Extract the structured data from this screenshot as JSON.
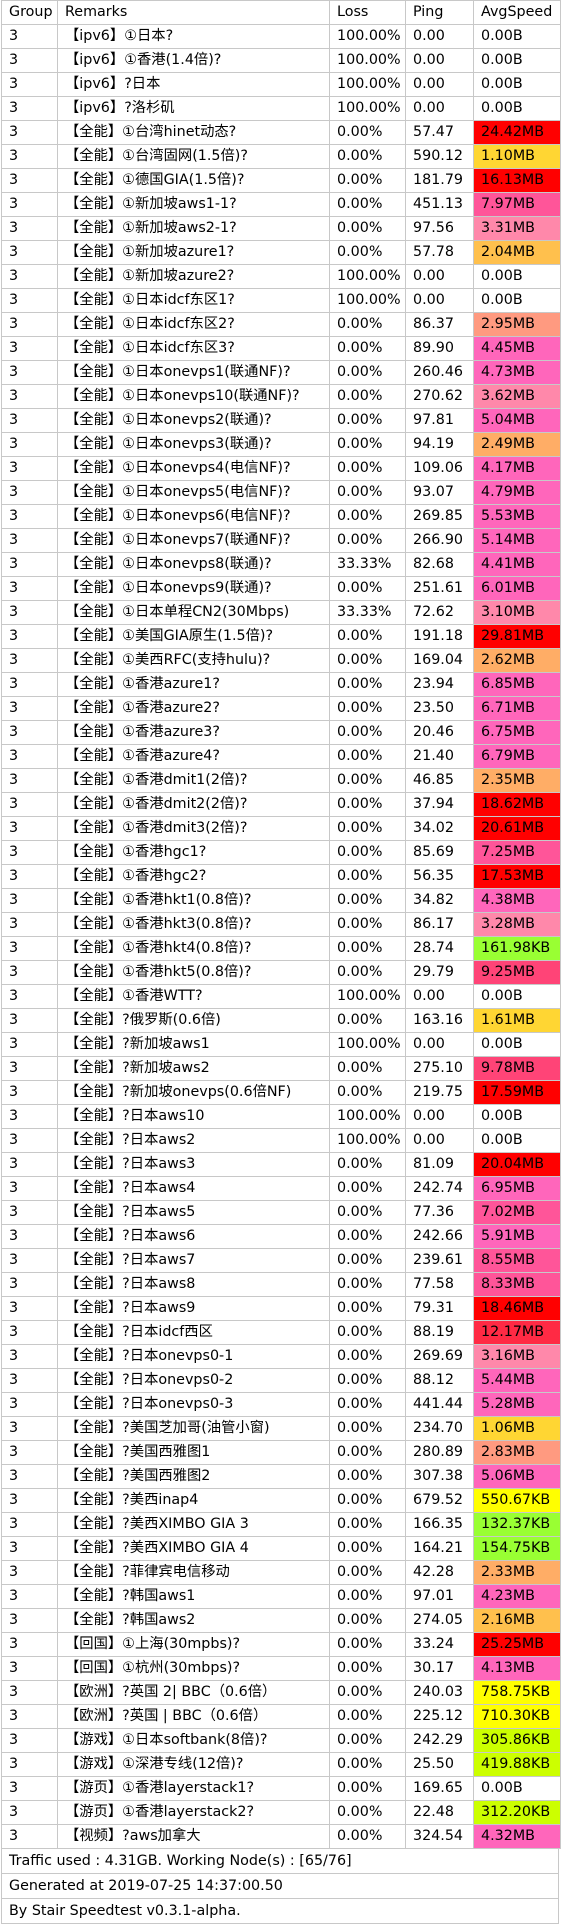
{
  "table": {
    "headers": [
      "Group",
      "Remarks",
      "Loss",
      "Ping",
      "AvgSpeed"
    ],
    "rows": [
      [
        "3",
        "【ipv6】①日本?",
        "100.00%",
        "0.00",
        "0.00B",
        "#ffffff"
      ],
      [
        "3",
        "【ipv6】①香港(1.4倍)?",
        "100.00%",
        "0.00",
        "0.00B",
        "#ffffff"
      ],
      [
        "3",
        "【ipv6】?日本",
        "100.00%",
        "0.00",
        "0.00B",
        "#ffffff"
      ],
      [
        "3",
        "【ipv6】?洛杉矶",
        "100.00%",
        "0.00",
        "0.00B",
        "#ffffff"
      ],
      [
        "3",
        "【全能】①台湾hinet动态?",
        "0.00%",
        "57.47",
        "24.42MB",
        "#ff0000"
      ],
      [
        "3",
        "【全能】①台湾固网(1.5倍)?",
        "0.00%",
        "590.12",
        "1.10MB",
        "#ffd633"
      ],
      [
        "3",
        "【全能】①德国GIA(1.5倍)?",
        "0.00%",
        "181.79",
        "16.13MB",
        "#ff0000"
      ],
      [
        "3",
        "【全能】①新加坡aws1-1?",
        "0.00%",
        "451.13",
        "7.97MB",
        "#ff5599"
      ],
      [
        "3",
        "【全能】①新加坡aws2-1?",
        "0.00%",
        "97.56",
        "3.31MB",
        "#ff88aa"
      ],
      [
        "3",
        "【全能】①新加坡azure1?",
        "0.00%",
        "57.78",
        "2.04MB",
        "#ffc04d"
      ],
      [
        "3",
        "【全能】①新加坡azure2?",
        "100.00%",
        "0.00",
        "0.00B",
        "#ffffff"
      ],
      [
        "3",
        "【全能】①日本idcf东区1?",
        "100.00%",
        "0.00",
        "0.00B",
        "#ffffff"
      ],
      [
        "3",
        "【全能】①日本idcf东区2?",
        "0.00%",
        "86.37",
        "2.95MB",
        "#ff9a80"
      ],
      [
        "3",
        "【全能】①日本idcf东区3?",
        "0.00%",
        "89.90",
        "4.45MB",
        "#ff66bb"
      ],
      [
        "3",
        "【全能】①日本onevps1(联通NF)?",
        "0.00%",
        "260.46",
        "4.73MB",
        "#ff66bb"
      ],
      [
        "3",
        "【全能】①日本onevps10(联通NF)?",
        "0.00%",
        "270.62",
        "3.62MB",
        "#ff88aa"
      ],
      [
        "3",
        "【全能】①日本onevps2(联通)?",
        "0.00%",
        "97.81",
        "5.04MB",
        "#ff66bb"
      ],
      [
        "3",
        "【全能】①日本onevps3(联通)?",
        "0.00%",
        "94.19",
        "2.49MB",
        "#ffad66"
      ],
      [
        "3",
        "【全能】①日本onevps4(电信NF)?",
        "0.00%",
        "109.06",
        "4.17MB",
        "#ff66bb"
      ],
      [
        "3",
        "【全能】①日本onevps5(电信NF)?",
        "0.00%",
        "93.07",
        "4.79MB",
        "#ff66bb"
      ],
      [
        "3",
        "【全能】①日本onevps6(电信NF)?",
        "0.00%",
        "269.85",
        "5.53MB",
        "#ff66bb"
      ],
      [
        "3",
        "【全能】①日本onevps7(联通NF)?",
        "0.00%",
        "266.90",
        "5.14MB",
        "#ff66bb"
      ],
      [
        "3",
        "【全能】①日本onevps8(联通)?",
        "33.33%",
        "82.68",
        "4.41MB",
        "#ff66bb"
      ],
      [
        "3",
        "【全能】①日本onevps9(联通)?",
        "0.00%",
        "251.61",
        "6.01MB",
        "#ff66bb"
      ],
      [
        "3",
        "【全能】①日本单程CN2(30Mbps)",
        "33.33%",
        "72.62",
        "3.10MB",
        "#ff88aa"
      ],
      [
        "3",
        "【全能】①美国GIA原生(1.5倍)?",
        "0.00%",
        "191.18",
        "29.81MB",
        "#ff0000"
      ],
      [
        "3",
        "【全能】①美西RFC(支持hulu)?",
        "0.00%",
        "169.04",
        "2.62MB",
        "#ffad66"
      ],
      [
        "3",
        "【全能】①香港azure1?",
        "0.00%",
        "23.94",
        "6.85MB",
        "#ff66bb"
      ],
      [
        "3",
        "【全能】①香港azure2?",
        "0.00%",
        "23.50",
        "6.71MB",
        "#ff66bb"
      ],
      [
        "3",
        "【全能】①香港azure3?",
        "0.00%",
        "20.46",
        "6.75MB",
        "#ff66bb"
      ],
      [
        "3",
        "【全能】①香港azure4?",
        "0.00%",
        "21.40",
        "6.79MB",
        "#ff66bb"
      ],
      [
        "3",
        "【全能】①香港dmit1(2倍)?",
        "0.00%",
        "46.85",
        "2.35MB",
        "#ffad66"
      ],
      [
        "3",
        "【全能】①香港dmit2(2倍)?",
        "0.00%",
        "37.94",
        "18.62MB",
        "#ff0000"
      ],
      [
        "3",
        "【全能】①香港dmit3(2倍)?",
        "0.00%",
        "34.02",
        "20.61MB",
        "#ff0000"
      ],
      [
        "3",
        "【全能】①香港hgc1?",
        "0.00%",
        "85.69",
        "7.25MB",
        "#ff5599"
      ],
      [
        "3",
        "【全能】①香港hgc2?",
        "0.00%",
        "56.35",
        "17.53MB",
        "#ff0000"
      ],
      [
        "3",
        "【全能】①香港hkt1(0.8倍)?",
        "0.00%",
        "34.82",
        "4.38MB",
        "#ff66bb"
      ],
      [
        "3",
        "【全能】①香港hkt3(0.8倍)?",
        "0.00%",
        "86.17",
        "3.28MB",
        "#ff88aa"
      ],
      [
        "3",
        "【全能】①香港hkt4(0.8倍)?",
        "0.00%",
        "28.74",
        "161.98KB",
        "#99ff33"
      ],
      [
        "3",
        "【全能】①香港hkt5(0.8倍)?",
        "0.00%",
        "29.79",
        "9.25MB",
        "#ff4477"
      ],
      [
        "3",
        "【全能】①香港WTT?",
        "100.00%",
        "0.00",
        "0.00B",
        "#ffffff"
      ],
      [
        "3",
        "【全能】?俄罗斯(0.6倍)",
        "0.00%",
        "163.16",
        "1.61MB",
        "#ffd633"
      ],
      [
        "3",
        "【全能】?新加坡aws1",
        "100.00%",
        "0.00",
        "0.00B",
        "#ffffff"
      ],
      [
        "3",
        "【全能】?新加坡aws2",
        "0.00%",
        "275.10",
        "9.78MB",
        "#ff4477"
      ],
      [
        "3",
        "【全能】?新加坡onevps(0.6倍NF)",
        "0.00%",
        "219.75",
        "17.59MB",
        "#ff0000"
      ],
      [
        "3",
        "【全能】?日本aws10",
        "100.00%",
        "0.00",
        "0.00B",
        "#ffffff"
      ],
      [
        "3",
        "【全能】?日本aws2",
        "100.00%",
        "0.00",
        "0.00B",
        "#ffffff"
      ],
      [
        "3",
        "【全能】?日本aws3",
        "0.00%",
        "81.09",
        "20.04MB",
        "#ff0000"
      ],
      [
        "3",
        "【全能】?日本aws4",
        "0.00%",
        "242.74",
        "6.95MB",
        "#ff66bb"
      ],
      [
        "3",
        "【全能】?日本aws5",
        "0.00%",
        "77.36",
        "7.02MB",
        "#ff5599"
      ],
      [
        "3",
        "【全能】?日本aws6",
        "0.00%",
        "242.66",
        "5.91MB",
        "#ff66bb"
      ],
      [
        "3",
        "【全能】?日本aws7",
        "0.00%",
        "239.61",
        "8.55MB",
        "#ff5599"
      ],
      [
        "3",
        "【全能】?日本aws8",
        "0.00%",
        "77.58",
        "8.33MB",
        "#ff5599"
      ],
      [
        "3",
        "【全能】?日本aws9",
        "0.00%",
        "79.31",
        "18.46MB",
        "#ff0000"
      ],
      [
        "3",
        "【全能】?日本idcf西区",
        "0.00%",
        "88.19",
        "12.17MB",
        "#ff2a44"
      ],
      [
        "3",
        "【全能】?日本onevps0-1",
        "0.00%",
        "269.69",
        "3.16MB",
        "#ff88aa"
      ],
      [
        "3",
        "【全能】?日本onevps0-2",
        "0.00%",
        "88.12",
        "5.44MB",
        "#ff66bb"
      ],
      [
        "3",
        "【全能】?日本onevps0-3",
        "0.00%",
        "441.44",
        "5.28MB",
        "#ff66bb"
      ],
      [
        "3",
        "【全能】?美国芝加哥(油管小窗)",
        "0.00%",
        "234.70",
        "1.06MB",
        "#ffd633"
      ],
      [
        "3",
        "【全能】?美国西雅图1",
        "0.00%",
        "280.89",
        "2.83MB",
        "#ff9a80"
      ],
      [
        "3",
        "【全能】?美国西雅图2",
        "0.00%",
        "307.38",
        "5.06MB",
        "#ff66bb"
      ],
      [
        "3",
        "【全能】?美西inap4",
        "0.00%",
        "679.52",
        "550.67KB",
        "#ffff00"
      ],
      [
        "3",
        "【全能】?美西XIMBO GIA 3",
        "0.00%",
        "166.35",
        "132.37KB",
        "#99ff33"
      ],
      [
        "3",
        "【全能】?美西XIMBO GIA 4",
        "0.00%",
        "164.21",
        "154.75KB",
        "#99ff33"
      ],
      [
        "3",
        "【全能】?菲律宾电信移动",
        "0.00%",
        "42.28",
        "2.33MB",
        "#ffad66"
      ],
      [
        "3",
        "【全能】?韩国aws1",
        "0.00%",
        "97.01",
        "4.23MB",
        "#ff66bb"
      ],
      [
        "3",
        "【全能】?韩国aws2",
        "0.00%",
        "274.05",
        "2.16MB",
        "#ffc04d"
      ],
      [
        "3",
        "【回国】①上海(30mpbs)?",
        "0.00%",
        "33.24",
        "25.25MB",
        "#ff0000"
      ],
      [
        "3",
        "【回国】①杭州(30mbps)?",
        "0.00%",
        "30.17",
        "4.13MB",
        "#ff66bb"
      ],
      [
        "3",
        "【欧洲】?英国 2| BBC（0.6倍）",
        "0.00%",
        "240.03",
        "758.75KB",
        "#ffff00"
      ],
      [
        "3",
        "【欧洲】?英国 | BBC（0.6倍）",
        "0.00%",
        "225.12",
        "710.30KB",
        "#ffff00"
      ],
      [
        "3",
        "【游戏】①日本softbank(8倍)?",
        "0.00%",
        "242.29",
        "305.86KB",
        "#ccff00"
      ],
      [
        "3",
        "【游戏】①深港专线(12倍)?",
        "0.00%",
        "25.50",
        "419.88KB",
        "#ccff00"
      ],
      [
        "3",
        "【游页】①香港layerstack1?",
        "0.00%",
        "169.65",
        "0.00B",
        "#ffffff"
      ],
      [
        "3",
        "【游页】①香港layerstack2?",
        "0.00%",
        "22.48",
        "312.20KB",
        "#ccff00"
      ],
      [
        "3",
        "【视频】?aws加拿大",
        "0.00%",
        "324.54",
        "4.32MB",
        "#ff66bb"
      ]
    ]
  },
  "footer": {
    "traffic": "Traffic used : 4.31GB. Working Node(s) : [65/76]",
    "generated": "Generated at 2019-07-25 14:37:00.50",
    "by": "By Stair Speedtest v0.3.1-alpha."
  }
}
